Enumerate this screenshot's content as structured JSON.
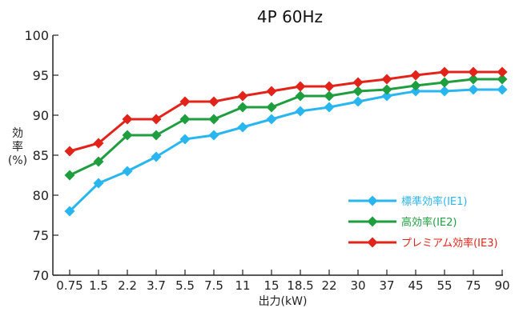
{
  "chart_data": {
    "type": "line",
    "title": "4P 60Hz",
    "xlabel": "出力(kW)",
    "ylabel": [
      "効",
      "率",
      "(%)"
    ],
    "categories": [
      "0.75",
      "1.5",
      "2.2",
      "3.7",
      "5.5",
      "7.5",
      "11",
      "15",
      "18.5",
      "22",
      "30",
      "37",
      "45",
      "55",
      "75",
      "90"
    ],
    "ylim": [
      70,
      100
    ],
    "yticks": [
      70,
      75,
      80,
      85,
      90,
      95,
      100
    ],
    "grid": false,
    "legend_position": "bottom-right",
    "series": [
      {
        "name": "標準効率(IE1)",
        "color": "#29b6f0",
        "values": [
          78.0,
          81.5,
          83.0,
          84.8,
          87.0,
          87.5,
          88.5,
          89.5,
          90.5,
          91.0,
          91.7,
          92.4,
          93.0,
          93.0,
          93.2,
          93.2
        ]
      },
      {
        "name": "高効率(IE2)",
        "color": "#1e9e3e",
        "values": [
          82.5,
          84.2,
          87.5,
          87.5,
          89.5,
          89.5,
          91.0,
          91.0,
          92.4,
          92.4,
          93.0,
          93.2,
          93.7,
          94.1,
          94.5,
          94.5
        ]
      },
      {
        "name": "プレミアム効率(IE3)",
        "color": "#e2231a",
        "values": [
          85.5,
          86.5,
          89.5,
          89.5,
          91.7,
          91.7,
          92.4,
          93.0,
          93.6,
          93.6,
          94.1,
          94.5,
          95.0,
          95.4,
          95.4,
          95.4
        ]
      }
    ]
  }
}
